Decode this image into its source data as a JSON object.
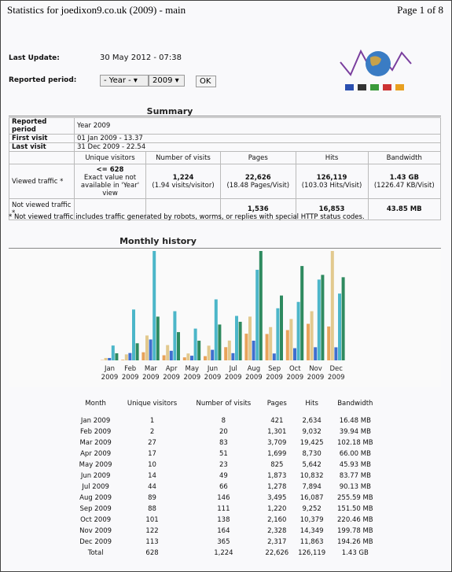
{
  "header": {
    "title": "Statistics for joedixon9.co.uk (2009) - main",
    "page": "Page 1 of 8"
  },
  "update": {
    "label": "Last Update:",
    "value": "30 May 2012 - 07:38"
  },
  "period": {
    "label": "Reported period:",
    "month": "- Year -",
    "year": "2009",
    "button": "OK"
  },
  "summary": {
    "title": "Summary",
    "period_label": "Reported period",
    "period_value": "Year 2009",
    "first_label": "First visit",
    "first_value": "01 Jan 2009 - 13.37",
    "last_label": "Last visit",
    "last_value": "31 Dec 2009 - 22.54",
    "headers": [
      "Unique visitors",
      "Number of visits",
      "Pages",
      "Hits",
      "Bandwidth"
    ],
    "viewed": {
      "label": "Viewed traffic *",
      "unique": "<= 628",
      "unique_note": "Exact value not available in 'Year' view",
      "visits": "1,224",
      "visits_note": "(1.94 visits/visitor)",
      "pages": "22,626",
      "pages_note": "(18.48 Pages/Visit)",
      "hits": "126,119",
      "hits_note": "(103.03 Hits/Visit)",
      "bandwidth": "1.43 GB",
      "bandwidth_note": "(1226.47 KB/Visit)"
    },
    "not_viewed": {
      "label": "Not viewed traffic *",
      "pages": "1,536",
      "hits": "16,853",
      "bandwidth": "43.85 MB"
    },
    "note": "* Not viewed traffic includes traffic generated by robots, worms, or replies with special HTTP status codes."
  },
  "monthly": {
    "title": "Monthly history",
    "chart_months": [
      "Jan",
      "Feb",
      "Mar",
      "Apr",
      "May",
      "Jun",
      "Jul",
      "Aug",
      "Sep",
      "Oct",
      "Nov",
      "Dec"
    ],
    "chart_year": "2009",
    "colors": {
      "unique": "#e8a35a",
      "visits": "#e2c98e",
      "pages": "#3f6fcf",
      "hits": "#4cb6c9",
      "bandwidth": "#2e8a5f"
    },
    "headers": [
      "Month",
      "Unique visitors",
      "Number of visits",
      "Pages",
      "Hits",
      "Bandwidth"
    ],
    "months": [
      "Jan 2009",
      "Feb 2009",
      "Mar 2009",
      "Apr 2009",
      "May 2009",
      "Jun 2009",
      "Jul 2009",
      "Aug 2009",
      "Sep 2009",
      "Oct 2009",
      "Nov 2009",
      "Dec 2009"
    ],
    "unique": [
      1,
      2,
      27,
      17,
      10,
      14,
      44,
      89,
      88,
      101,
      122,
      113
    ],
    "visits": [
      8,
      20,
      83,
      51,
      23,
      49,
      66,
      146,
      111,
      138,
      164,
      365
    ],
    "pages": [
      421,
      1301,
      3709,
      1699,
      825,
      1873,
      1278,
      3495,
      1220,
      2160,
      2328,
      2317
    ],
    "pages_labels": [
      "421",
      "1,301",
      "3,709",
      "1,699",
      "825",
      "1,873",
      "1,278",
      "3,495",
      "1,220",
      "2,160",
      "2,328",
      "2,317"
    ],
    "hits": [
      2634,
      9032,
      19425,
      8730,
      5642,
      10832,
      7894,
      16087,
      9252,
      10379,
      14349,
      11863
    ],
    "hits_labels": [
      "2,634",
      "9,032",
      "19,425",
      "8,730",
      "5,642",
      "10,832",
      "7,894",
      "16,087",
      "9,252",
      "10,379",
      "14,349",
      "11,863"
    ],
    "bandwidth": [
      16.48,
      39.94,
      102.18,
      66.0,
      45.93,
      83.77,
      90.13,
      255.59,
      151.5,
      220.46,
      199.78,
      194.26
    ],
    "bandwidth_labels": [
      "16.48 MB",
      "39.94 MB",
      "102.18 MB",
      "66.00 MB",
      "45.93 MB",
      "83.77 MB",
      "90.13 MB",
      "255.59 MB",
      "151.50 MB",
      "220.46 MB",
      "199.78 MB",
      "194.26 MB"
    ],
    "total": [
      "Total",
      "628",
      "1,224",
      "22,626",
      "126,119",
      "1.43 GB"
    ]
  }
}
